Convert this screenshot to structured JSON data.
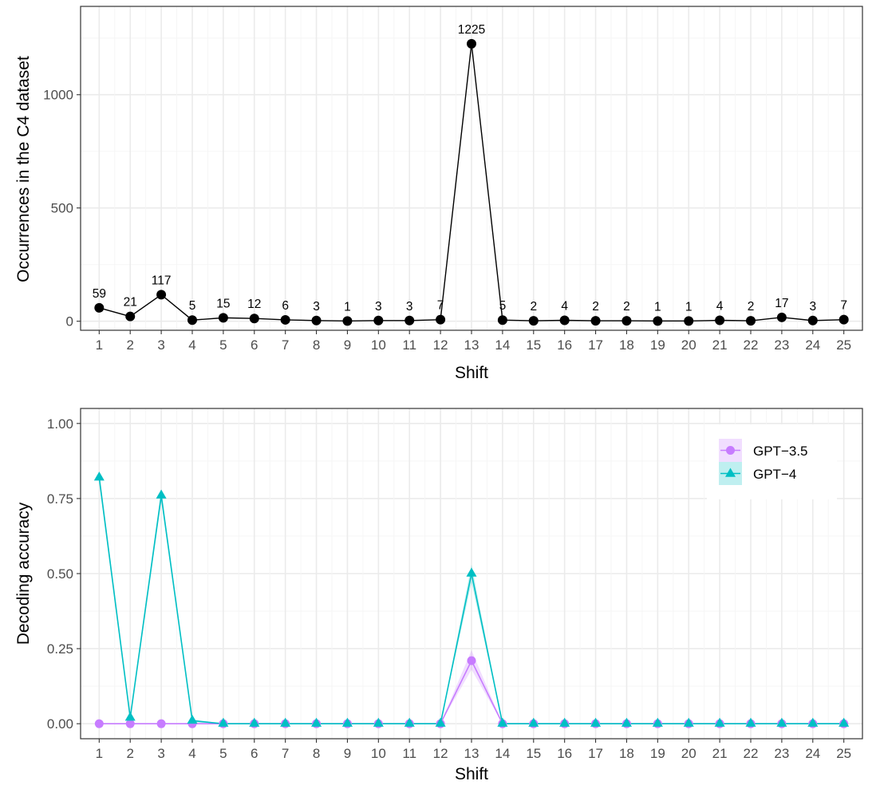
{
  "chart_data": [
    {
      "type": "line",
      "xlabel": "Shift",
      "ylabel": "Occurrences in the C4 dataset",
      "x": [
        1,
        2,
        3,
        4,
        5,
        6,
        7,
        8,
        9,
        10,
        11,
        12,
        13,
        14,
        15,
        16,
        17,
        18,
        19,
        20,
        21,
        22,
        23,
        24,
        25
      ],
      "values": [
        59,
        21,
        117,
        5,
        15,
        12,
        6,
        3,
        1,
        3,
        3,
        7,
        1225,
        5,
        2,
        4,
        2,
        2,
        1,
        1,
        4,
        2,
        17,
        3,
        7
      ],
      "data_labels": [
        "59",
        "21",
        "117",
        "5",
        "15",
        "12",
        "6",
        "3",
        "1",
        "3",
        "3",
        "7",
        "1225",
        "5",
        "2",
        "4",
        "2",
        "2",
        "1",
        "1",
        "4",
        "2",
        "17",
        "3",
        "7"
      ],
      "yticks": [
        0,
        500,
        1000
      ],
      "ytick_labels": [
        "0",
        "500",
        "1000"
      ],
      "xlim": [
        0.4,
        25.6
      ],
      "ylim": [
        -40,
        1390
      ],
      "grid": true,
      "colors": {
        "line": "#000000",
        "point": "#000000"
      }
    },
    {
      "type": "line",
      "xlabel": "Shift",
      "ylabel": "Decoding accuracy",
      "x": [
        1,
        2,
        3,
        4,
        5,
        6,
        7,
        8,
        9,
        10,
        11,
        12,
        13,
        14,
        15,
        16,
        17,
        18,
        19,
        20,
        21,
        22,
        23,
        24,
        25
      ],
      "series": [
        {
          "name": "GPT−3.5",
          "marker": "circle",
          "color": "#c77cff",
          "values": [
            0,
            0,
            0,
            0,
            0,
            0,
            0,
            0,
            0,
            0,
            0,
            0,
            0.21,
            0,
            0,
            0,
            0,
            0,
            0,
            0,
            0,
            0,
            0,
            0,
            0
          ],
          "ci_low": [
            0,
            0,
            0,
            0,
            0,
            0,
            0,
            0,
            0,
            0,
            0,
            0,
            0.18,
            0,
            0,
            0,
            0,
            0,
            0,
            0,
            0,
            0,
            0,
            0,
            0
          ],
          "ci_high": [
            0,
            0,
            0,
            0,
            0,
            0,
            0,
            0,
            0,
            0,
            0,
            0,
            0.245,
            0,
            0,
            0,
            0,
            0,
            0,
            0,
            0,
            0,
            0,
            0,
            0
          ]
        },
        {
          "name": "GPT−4",
          "marker": "triangle",
          "color": "#00bfc4",
          "values": [
            0.82,
            0.02,
            0.76,
            0.01,
            0,
            0,
            0,
            0,
            0,
            0,
            0,
            0,
            0.5,
            0,
            0,
            0,
            0,
            0,
            0,
            0,
            0,
            0,
            0,
            0,
            0
          ],
          "ci_low": [
            0.8,
            0.01,
            0.74,
            0.005,
            0,
            0,
            0,
            0,
            0,
            0,
            0,
            0,
            0.47,
            0,
            0,
            0,
            0,
            0,
            0,
            0,
            0,
            0,
            0,
            0,
            0
          ],
          "ci_high": [
            0.84,
            0.03,
            0.78,
            0.015,
            0,
            0,
            0,
            0,
            0,
            0,
            0,
            0,
            0.53,
            0,
            0,
            0,
            0,
            0,
            0,
            0,
            0,
            0,
            0,
            0,
            0
          ]
        }
      ],
      "yticks": [
        0,
        0.25,
        0.5,
        0.75,
        1.0
      ],
      "ytick_labels": [
        "0.00",
        "0.25",
        "0.50",
        "0.75",
        "1.00"
      ],
      "xlim": [
        0.4,
        25.6
      ],
      "ylim": [
        -0.05,
        1.05
      ],
      "grid": true,
      "legend_position": "top-right"
    }
  ]
}
